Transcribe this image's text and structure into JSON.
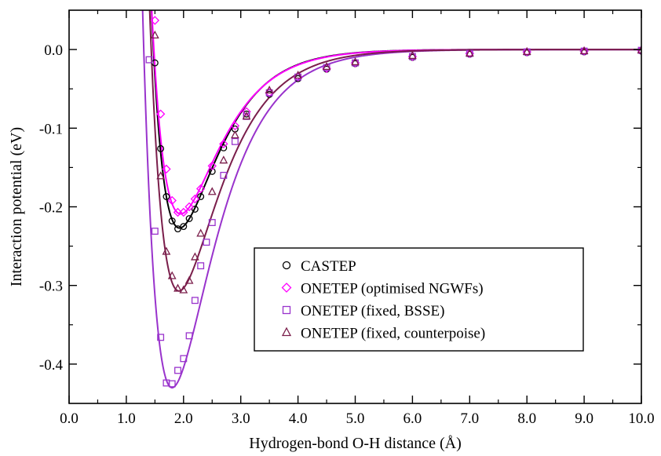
{
  "chart_data": {
    "type": "scatter",
    "xlabel": "Hydrogen-bond O-H distance (Å)",
    "ylabel": "Interaction potential (eV)",
    "xlim": [
      0.0,
      10.0
    ],
    "ylim": [
      -0.45,
      0.05
    ],
    "x_ticks": [
      "0.0",
      "1.0",
      "2.0",
      "3.0",
      "4.0",
      "5.0",
      "6.0",
      "7.0",
      "8.0",
      "9.0",
      "10.0"
    ],
    "x_tick_values": [
      0,
      1,
      2,
      3,
      4,
      5,
      6,
      7,
      8,
      9,
      10
    ],
    "y_ticks": [
      "0.0",
      "-0.1",
      "-0.2",
      "-0.3",
      "-0.4"
    ],
    "y_tick_values": [
      0.0,
      -0.1,
      -0.2,
      -0.3,
      -0.4
    ],
    "grid": false,
    "legend_position": "bottom-right",
    "series": [
      {
        "name": "CASTEP",
        "marker": "circle",
        "color": "#000000",
        "x": [
          1.5,
          1.6,
          1.7,
          1.8,
          1.9,
          2.0,
          2.1,
          2.2,
          2.3,
          2.5,
          2.7,
          2.9,
          3.1,
          3.5,
          4.0,
          4.5,
          5.0,
          6.0,
          7.0,
          8.0,
          9.0,
          10.0
        ],
        "y": [
          -0.017,
          -0.126,
          -0.187,
          -0.218,
          -0.228,
          -0.225,
          -0.215,
          -0.203,
          -0.187,
          -0.155,
          -0.125,
          -0.101,
          -0.082,
          -0.057,
          -0.037,
          -0.025,
          -0.018,
          -0.01,
          -0.006,
          -0.004,
          -0.003,
          -0.002
        ],
        "fit": {
          "d": 0.227,
          "r0": 1.93,
          "a": 1.52
        }
      },
      {
        "name": "ONETEP (optimised NGWFs)",
        "marker": "diamond",
        "color": "#ff00ff",
        "x": [
          1.5,
          1.6,
          1.7,
          1.8,
          1.9,
          2.0,
          2.1,
          2.2,
          2.3,
          2.5,
          2.7,
          2.9,
          3.1,
          3.5,
          4.0,
          4.5,
          5.0,
          6.0,
          7.0,
          8.0,
          9.0,
          10.0
        ],
        "y": [
          0.037,
          -0.082,
          -0.152,
          -0.192,
          -0.207,
          -0.207,
          -0.2,
          -0.19,
          -0.177,
          -0.148,
          -0.12,
          -0.097,
          -0.079,
          -0.055,
          -0.035,
          -0.024,
          -0.017,
          -0.009,
          -0.005,
          -0.003,
          -0.002,
          -0.001
        ],
        "fit": {
          "d": 0.209,
          "r0": 1.95,
          "a": 1.48
        }
      },
      {
        "name": "ONETEP (fixed, BSSE)",
        "marker": "square",
        "color": "#9933cc",
        "x": [
          1.4,
          1.5,
          1.6,
          1.7,
          1.8,
          1.9,
          2.0,
          2.1,
          2.2,
          2.3,
          2.4,
          2.5,
          2.7,
          2.9,
          3.1,
          3.5,
          4.0,
          4.5,
          5.0,
          6.0,
          7.0,
          8.0,
          9.0,
          10.0
        ],
        "y": [
          -0.013,
          -0.231,
          -0.366,
          -0.424,
          -0.425,
          -0.408,
          -0.393,
          -0.364,
          -0.319,
          -0.275,
          -0.245,
          -0.22,
          -0.16,
          -0.117,
          -0.085,
          -0.055,
          -0.035,
          -0.023,
          -0.017,
          -0.009,
          -0.005,
          -0.003,
          -0.002,
          -0.001
        ],
        "fit": {
          "d": 0.43,
          "r0": 1.8,
          "a": 1.4
        }
      },
      {
        "name": "ONETEP (fixed, counterpoise)",
        "marker": "triangle",
        "color": "#7a1e4b",
        "x": [
          1.5,
          1.6,
          1.7,
          1.8,
          1.9,
          2.0,
          2.1,
          2.2,
          2.3,
          2.5,
          2.7,
          2.9,
          3.1,
          3.5,
          4.0,
          4.5,
          5.0,
          6.0,
          7.0,
          8.0,
          9.0,
          10.0
        ],
        "y": [
          0.018,
          -0.161,
          -0.257,
          -0.288,
          -0.304,
          -0.306,
          -0.294,
          -0.264,
          -0.234,
          -0.181,
          -0.141,
          -0.109,
          -0.085,
          -0.052,
          -0.033,
          -0.022,
          -0.016,
          -0.008,
          -0.005,
          -0.003,
          -0.002,
          -0.001
        ],
        "fit": {
          "d": 0.307,
          "r0": 1.92,
          "a": 1.43
        }
      }
    ]
  }
}
